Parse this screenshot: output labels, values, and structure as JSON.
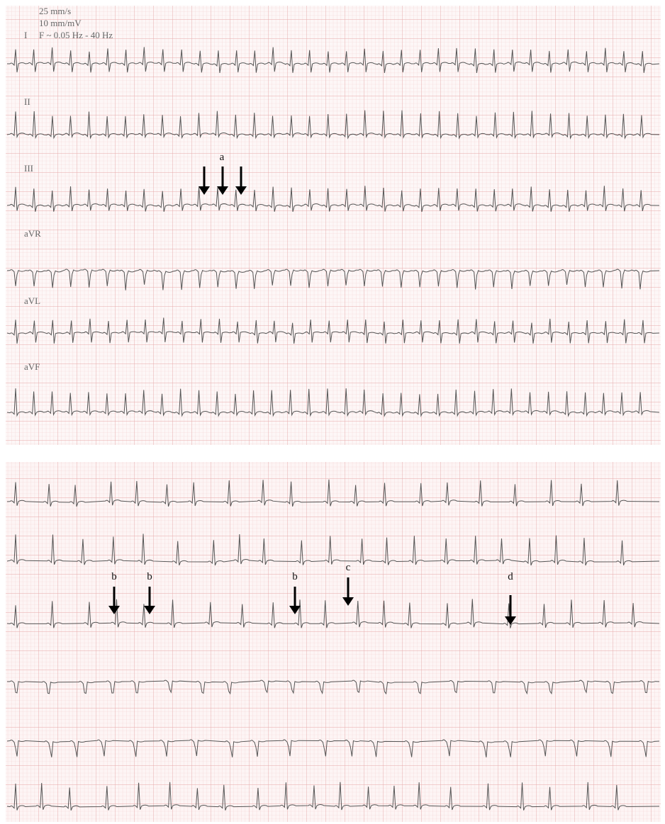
{
  "header": {
    "speed": "25 mm/s",
    "gain": "10 mm/mV",
    "filter": "F ~ 0.05 Hz - 40 Hz"
  },
  "leads": [
    "I",
    "II",
    "III",
    "aVR",
    "aVL",
    "aVF"
  ],
  "annotations": [
    "a",
    "b",
    "b",
    "b",
    "c",
    "d"
  ]
}
